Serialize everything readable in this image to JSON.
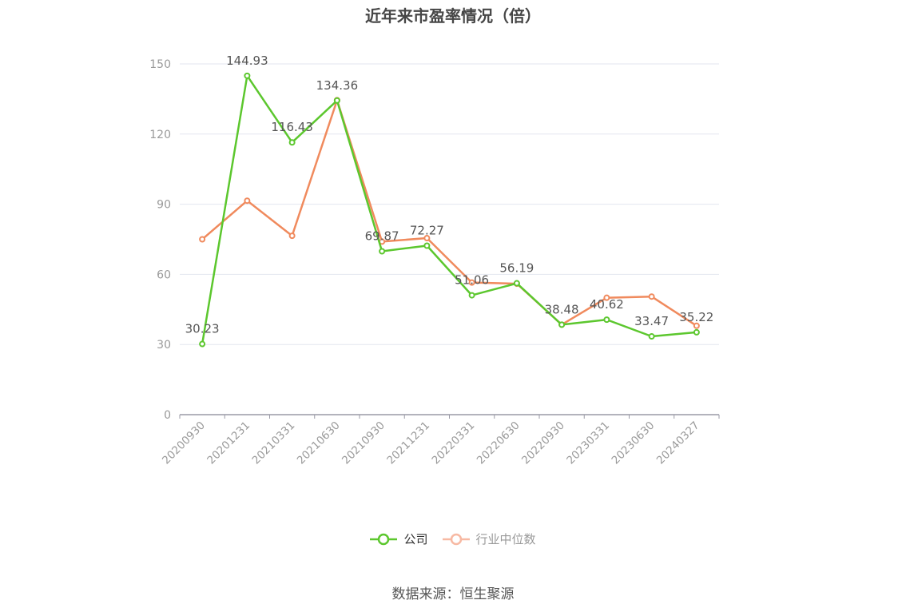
{
  "title": "近年来市盈率情况（倍）",
  "source": "数据来源：恒生聚源",
  "colors": {
    "company": "#5cc72e",
    "industry": "#f08a5d",
    "legend_inactive": "#f7b9a3",
    "axis": "#9a9aa6",
    "grid": "#e3e6ef",
    "tick_text": "#9a9a9a",
    "label_text": "#555555"
  },
  "chart_data": {
    "type": "line",
    "categories": [
      "20200930",
      "20201231",
      "20210331",
      "20210630",
      "20210930",
      "20211231",
      "20220331",
      "20220630",
      "20220930",
      "20230331",
      "20230630",
      "20240327"
    ],
    "ylim": [
      0,
      150
    ],
    "yticks": [
      0,
      30,
      60,
      90,
      120,
      150
    ],
    "grid": true,
    "legend_position": "bottom-center",
    "series": [
      {
        "name": "公司",
        "key": "company",
        "values": [
          30.23,
          144.93,
          116.43,
          134.36,
          69.87,
          72.27,
          51.06,
          56.19,
          38.48,
          40.62,
          33.47,
          35.22
        ],
        "labels": [
          "30.23",
          "144.93",
          "116.43",
          "134.36",
          "69.87",
          "72.27",
          "51.06",
          "56.19",
          "38.48",
          "40.62",
          "33.47",
          "35.22"
        ]
      },
      {
        "name": "行业中位数",
        "key": "industry",
        "values": [
          75.0,
          91.5,
          76.5,
          134.5,
          74.0,
          75.5,
          56.5,
          56.0,
          38.5,
          50.0,
          50.5,
          38.0
        ]
      }
    ]
  }
}
